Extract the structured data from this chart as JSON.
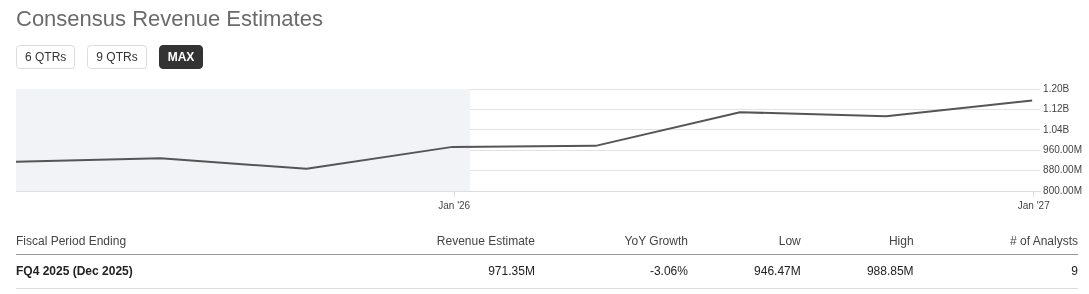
{
  "chart_data": {
    "type": "line",
    "title": "Consensus Revenue Estimates",
    "x": [
      "2025-03-31",
      "2025-06-30",
      "2025-09-30",
      "2025-12-31",
      "2026-03-31",
      "2026-06-30",
      "2026-09-30",
      "2026-12-31"
    ],
    "series": [
      {
        "color": "#555555",
        "values": [
          915000000,
          928000000,
          887000000,
          973000000,
          977000000,
          1109000000,
          1093000000,
          1155000000
        ]
      }
    ],
    "xlim": [
      "2025-03-31",
      "2027-01-05"
    ],
    "xticks": [
      {
        "value": "2026-01-01",
        "label": "Jan '26"
      },
      {
        "value": "2027-01-01",
        "label": "Jan '27"
      }
    ],
    "ylim": [
      800000000,
      1200000000
    ],
    "yticks": [
      {
        "value": 800000000,
        "label": "800.00M"
      },
      {
        "value": 880000000,
        "label": "880.00M"
      },
      {
        "value": 960000000,
        "label": "960.00M"
      },
      {
        "value": 1040000000,
        "label": "1.04B"
      },
      {
        "value": 1120000000,
        "label": "1.12B"
      },
      {
        "value": 1200000000,
        "label": "1.20B"
      }
    ],
    "bands": [
      {
        "axis": "x",
        "from": "2025-03-31",
        "to": "2026-01-11",
        "color": "#f2f3f6"
      }
    ],
    "grid": "y",
    "legend": false,
    "marker": "none",
    "line_style": "solid",
    "annotations": [
      "6 QTRs",
      "9 QTRs",
      "MAX",
      "Fiscal Period Ending",
      "Revenue Estimate",
      "YoY Growth",
      "Low",
      "High",
      "# of Analysts",
      "FQ4 2025 (Dec 2025)",
      "971.35M",
      "-3.06%",
      "946.47M",
      "988.85M",
      "9"
    ]
  }
}
